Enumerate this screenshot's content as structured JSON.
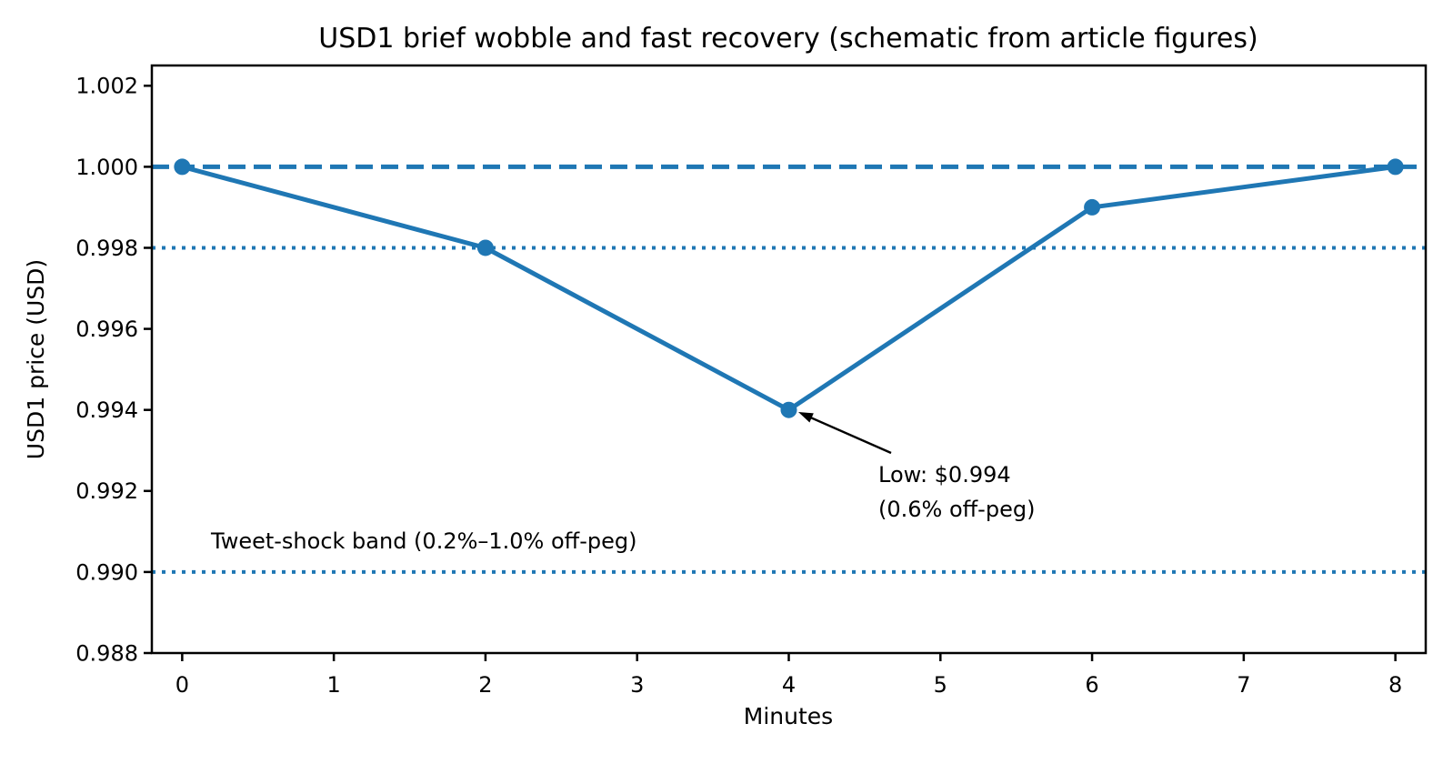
{
  "chart_data": {
    "type": "line",
    "title": "USD1 brief wobble and fast recovery (schematic from article figures)",
    "xlabel": "Minutes",
    "ylabel": "USD1 price (USD)",
    "x": [
      0,
      2,
      4,
      6,
      8
    ],
    "y": [
      1.0,
      0.998,
      0.994,
      0.999,
      1.0
    ],
    "xlim": [
      -0.2,
      8.2
    ],
    "ylim": [
      0.988,
      1.0025
    ],
    "xticks": [
      0,
      1,
      2,
      3,
      4,
      5,
      6,
      7,
      8
    ],
    "xtick_labels": [
      "0",
      "1",
      "2",
      "3",
      "4",
      "5",
      "6",
      "7",
      "8"
    ],
    "yticks": [
      0.988,
      0.99,
      0.992,
      0.994,
      0.996,
      0.998,
      1.0,
      1.002
    ],
    "ytick_labels": [
      "0.988",
      "0.990",
      "0.992",
      "0.994",
      "0.996",
      "0.998",
      "1.000",
      "1.002"
    ],
    "grid": false,
    "legend": null,
    "colors": {
      "series": "#1f77b4",
      "text": "#000000",
      "spine": "#000000"
    },
    "reference_lines": [
      {
        "y": 1.0,
        "style": "dashed",
        "color": "#1f77b4",
        "meaning": "peg"
      },
      {
        "y": 0.998,
        "style": "dotted",
        "color": "#1f77b4",
        "meaning": "band-upper"
      },
      {
        "y": 0.99,
        "style": "dotted",
        "color": "#1f77b4",
        "meaning": "band-lower"
      }
    ],
    "annotation": {
      "line1": "Low: $0.994",
      "line2": "(0.6% off-peg)",
      "point_x": 4,
      "point_y": 0.994
    },
    "band_label": "Tweet-shock band (0.2%–1.0% off-peg)"
  }
}
